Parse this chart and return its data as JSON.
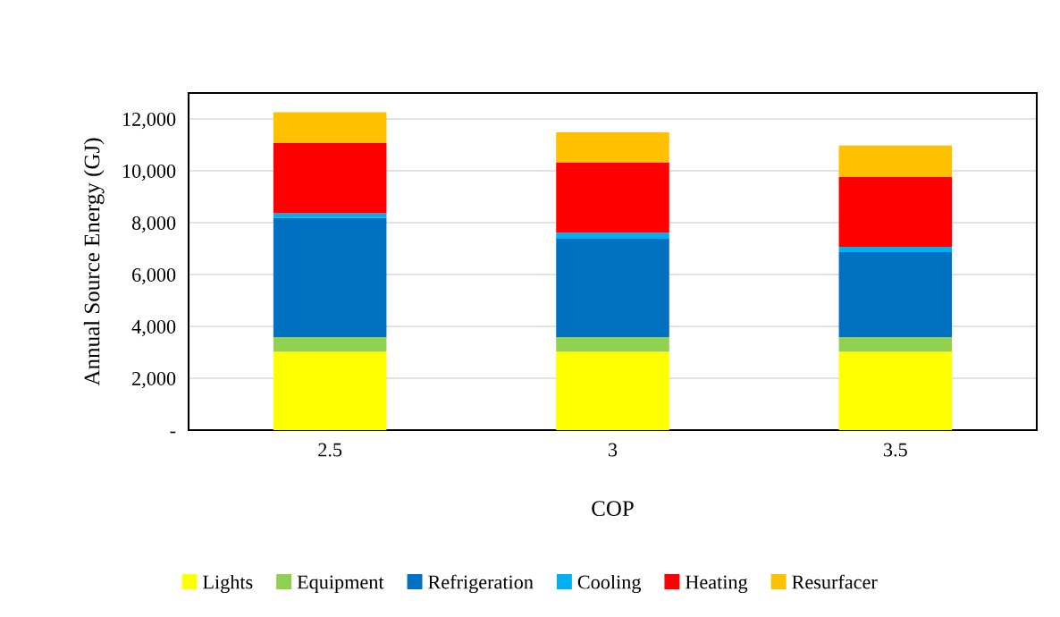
{
  "chart_data": {
    "type": "bar",
    "stacked": true,
    "xlabel": "COP",
    "ylabel": "Annual Source Energy (GJ)",
    "categories": [
      "2.5",
      "3",
      "3.5"
    ],
    "series": [
      {
        "name": "Lights",
        "color": "#ffff00",
        "values": [
          3030,
          3030,
          3030
        ]
      },
      {
        "name": "Equipment",
        "color": "#92d050",
        "values": [
          560,
          560,
          560
        ]
      },
      {
        "name": "Refrigeration",
        "color": "#0070c0",
        "values": [
          4590,
          3790,
          3270
        ]
      },
      {
        "name": "Cooling",
        "color": "#00b0f0",
        "values": [
          180,
          230,
          210
        ]
      },
      {
        "name": "Heating",
        "color": "#ff0000",
        "values": [
          2720,
          2720,
          2700
        ]
      },
      {
        "name": "Resurfacer",
        "color": "#ffc000",
        "values": [
          1180,
          1150,
          1200
        ]
      }
    ],
    "ylim": [
      0,
      13000
    ],
    "yticks": [
      {
        "value": 0,
        "label": "-"
      },
      {
        "value": 2000,
        "label": "2,000"
      },
      {
        "value": 4000,
        "label": "4,000"
      },
      {
        "value": 6000,
        "label": "6,000"
      },
      {
        "value": 8000,
        "label": "8,000"
      },
      {
        "value": 10000,
        "label": "10,000"
      },
      {
        "value": 12000,
        "label": "12,000"
      }
    ],
    "grid": "y",
    "legend": "bottom"
  }
}
